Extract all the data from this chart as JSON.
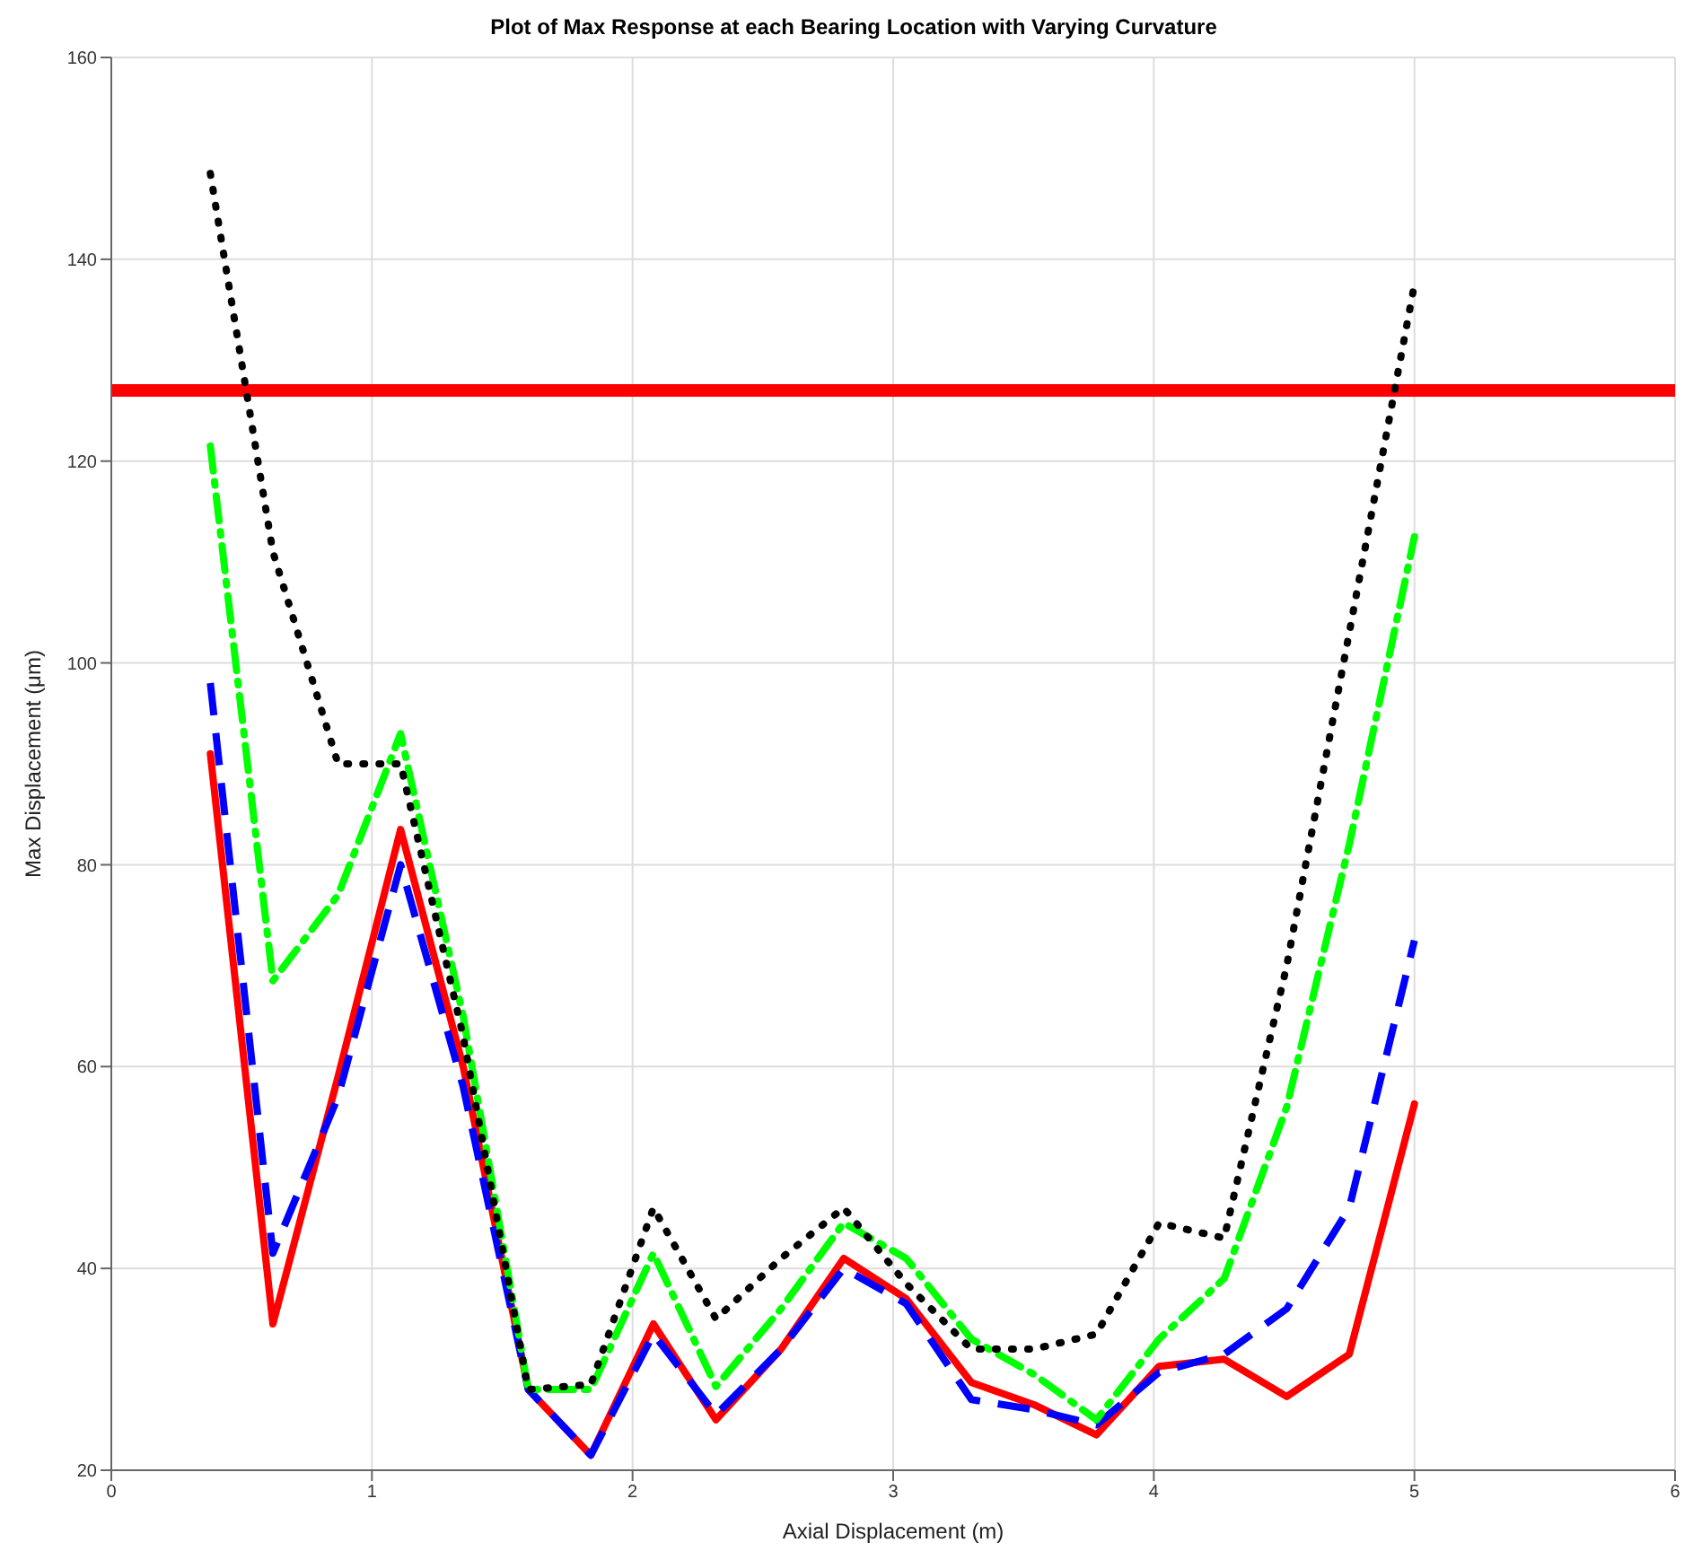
{
  "chart_data": {
    "type": "line",
    "title": "Plot of Max Response at each Bearing Location with Varying Curvature",
    "xlabel": "Axial Displacement (m)",
    "ylabel": "Max Displacement (μm)",
    "x": [
      0.38,
      0.62,
      0.87,
      1.11,
      1.35,
      1.6,
      1.84,
      2.08,
      2.32,
      2.57,
      2.81,
      3.05,
      3.3,
      3.54,
      3.78,
      4.02,
      4.27,
      4.51,
      4.75,
      5.0
    ],
    "series": [
      {
        "color": "#ff0000",
        "line_style": "solid",
        "values": [
          91,
          34.5,
          59,
          83.5,
          60,
          28,
          21.5,
          34.5,
          25,
          32,
          41,
          37,
          28.7,
          26.5,
          23.5,
          30.3,
          31,
          27.3,
          31.5,
          56.3
        ]
      },
      {
        "color": "#0000ff",
        "line_style": "dashed",
        "values": [
          98,
          41.5,
          57,
          80,
          58,
          28,
          21.5,
          33.5,
          25.5,
          32,
          40,
          36.5,
          27,
          26,
          24.5,
          29.7,
          31.5,
          36,
          46,
          72.5
        ]
      },
      {
        "color": "#00ff00",
        "line_style": "dashdot",
        "values": [
          121.5,
          68.5,
          77,
          93,
          65,
          28,
          28,
          41.5,
          28.3,
          36,
          44.5,
          41,
          33,
          29.5,
          25,
          33,
          39,
          56,
          82,
          112.5
        ]
      },
      {
        "color": "#000000",
        "line_style": "dotted",
        "values": [
          148.5,
          111,
          90,
          90,
          63,
          28,
          28.5,
          46,
          35,
          41,
          46,
          38.5,
          32,
          32,
          33.5,
          44.5,
          43,
          70,
          103,
          137.5
        ]
      }
    ],
    "ref_lines": [
      {
        "axis": "y",
        "value": 127,
        "color": "#ff0000"
      }
    ],
    "xlim": [
      0,
      6
    ],
    "xticks": [
      0,
      1,
      2,
      3,
      4,
      5,
      6
    ],
    "ylim": [
      20,
      160
    ],
    "yticks": [
      20,
      40,
      60,
      80,
      100,
      120,
      140,
      160
    ],
    "grid": true,
    "marker": "none"
  }
}
